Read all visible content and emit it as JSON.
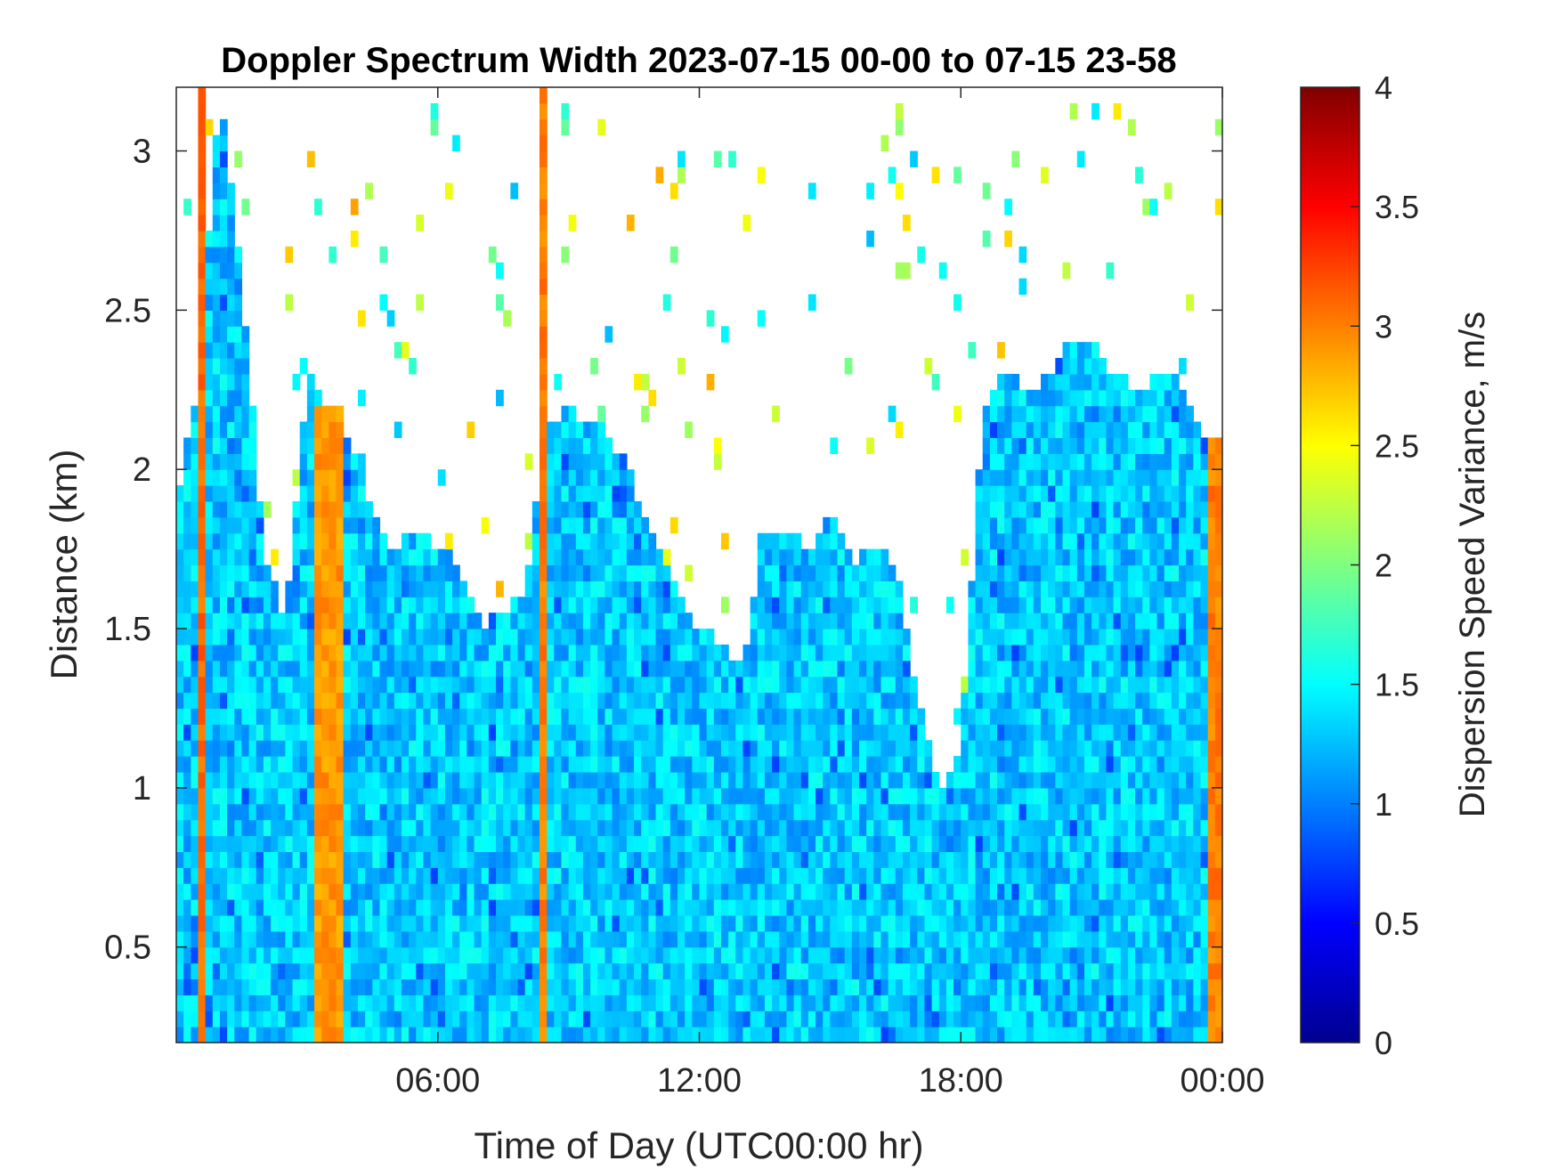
{
  "chart_data": {
    "type": "heatmap",
    "title": "Doppler Spectrum Width 2023-07-15 00-00 to 07-15 23-58",
    "xlabel": "Time of Day (UTC00:00 hr)",
    "ylabel": "Distance (km)",
    "xlim": [
      0,
      24
    ],
    "ylim": [
      0.2,
      3.2
    ],
    "x_ticks": [
      6,
      12,
      18,
      24
    ],
    "x_tick_labels": [
      "06:00",
      "12:00",
      "18:00",
      "00:00"
    ],
    "y_ticks": [
      0.5,
      1,
      1.5,
      2,
      2.5,
      3
    ],
    "y_tick_labels": [
      "0.5",
      "1",
      "1.5",
      "2",
      "2.5",
      "3"
    ],
    "colorbar": {
      "label": "Dispersion Speed Variance, m/s",
      "range": [
        0,
        4
      ],
      "ticks": [
        0,
        0.5,
        1,
        1.5,
        2,
        2.5,
        3,
        3.5,
        4
      ],
      "tick_labels": [
        "0",
        "0.5",
        "1",
        "1.5",
        "2",
        "2.5",
        "3",
        "3.5",
        "4"
      ],
      "colormap": "jet"
    },
    "grid": false,
    "data_top_height_km": [
      [
        0.0,
        1.85
      ],
      [
        0.5,
        2.3
      ],
      [
        1.0,
        3.2
      ],
      [
        1.5,
        2.6
      ],
      [
        2.0,
        1.75
      ],
      [
        2.5,
        1.5
      ],
      [
        3.0,
        2.3
      ],
      [
        3.5,
        2.2
      ],
      [
        4.0,
        2.1
      ],
      [
        4.5,
        1.85
      ],
      [
        5.0,
        1.75
      ],
      [
        5.5,
        1.8
      ],
      [
        6.0,
        1.75
      ],
      [
        6.5,
        1.7
      ],
      [
        7.0,
        1.5
      ],
      [
        7.5,
        1.55
      ],
      [
        8.0,
        1.6
      ],
      [
        8.5,
        2.15
      ],
      [
        9.0,
        2.2
      ],
      [
        9.5,
        2.15
      ],
      [
        10.0,
        2.1
      ],
      [
        10.5,
        1.95
      ],
      [
        11.0,
        1.75
      ],
      [
        11.5,
        1.6
      ],
      [
        12.0,
        1.5
      ],
      [
        12.5,
        1.45
      ],
      [
        13.0,
        1.4
      ],
      [
        13.5,
        1.8
      ],
      [
        14.0,
        1.8
      ],
      [
        14.5,
        1.75
      ],
      [
        15.0,
        1.85
      ],
      [
        15.5,
        1.7
      ],
      [
        16.0,
        1.75
      ],
      [
        16.5,
        1.7
      ],
      [
        17.0,
        1.3
      ],
      [
        17.5,
        1.0
      ],
      [
        18.0,
        1.1
      ],
      [
        18.5,
        2.2
      ],
      [
        19.0,
        2.3
      ],
      [
        19.5,
        2.25
      ],
      [
        20.0,
        2.3
      ],
      [
        20.5,
        2.4
      ],
      [
        21.0,
        2.4
      ],
      [
        21.5,
        2.3
      ],
      [
        22.0,
        2.25
      ],
      [
        22.5,
        2.3
      ],
      [
        23.0,
        2.3
      ],
      [
        23.5,
        2.1
      ],
      [
        24.0,
        2.1
      ]
    ],
    "dominant_value_mps": 1.3,
    "high_value_bands": [
      {
        "x_start": 0.45,
        "x_end": 0.7,
        "y_top_km": 3.2,
        "value_mps": 3.1
      },
      {
        "x_start": 3.1,
        "x_end": 3.8,
        "y_top_km": 2.2,
        "value_mps": 2.9
      },
      {
        "x_start": 8.4,
        "x_end": 8.5,
        "y_top_km": 3.2,
        "value_mps": 3.0
      },
      {
        "x_start": 23.6,
        "x_end": 24.0,
        "y_top_km": 2.1,
        "value_mps": 3.0
      }
    ]
  }
}
